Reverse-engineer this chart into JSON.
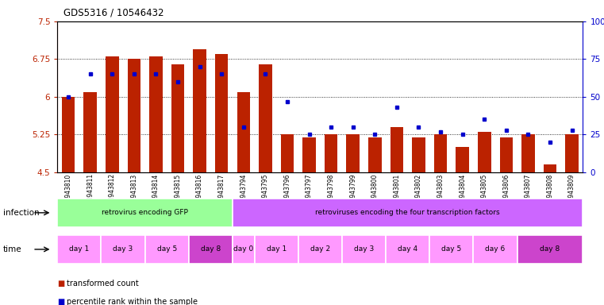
{
  "title": "GDS5316 / 10546432",
  "samples": [
    "GSM943810",
    "GSM943811",
    "GSM943812",
    "GSM943813",
    "GSM943814",
    "GSM943815",
    "GSM943816",
    "GSM943817",
    "GSM943794",
    "GSM943795",
    "GSM943796",
    "GSM943797",
    "GSM943798",
    "GSM943799",
    "GSM943800",
    "GSM943801",
    "GSM943802",
    "GSM943803",
    "GSM943804",
    "GSM943805",
    "GSM943806",
    "GSM943807",
    "GSM943808",
    "GSM943809"
  ],
  "bar_values": [
    6.0,
    6.1,
    6.8,
    6.75,
    6.8,
    6.65,
    6.95,
    6.85,
    6.1,
    6.65,
    5.25,
    5.2,
    5.25,
    5.25,
    5.2,
    5.4,
    5.2,
    5.25,
    5.0,
    5.3,
    5.2,
    5.25,
    4.65,
    5.25
  ],
  "blue_values": [
    50,
    65,
    65,
    65,
    65,
    60,
    70,
    65,
    30,
    65,
    47,
    25,
    30,
    30,
    25,
    43,
    30,
    27,
    25,
    35,
    28,
    25,
    20,
    28
  ],
  "ylim_left": [
    4.5,
    7.5
  ],
  "ylim_right": [
    0,
    100
  ],
  "yticks_left": [
    4.5,
    5.25,
    6.0,
    6.75,
    7.5
  ],
  "yticks_right": [
    0,
    25,
    50,
    75,
    100
  ],
  "ytick_labels_left": [
    "4.5",
    "5.25",
    "6",
    "6.75",
    "7.5"
  ],
  "ytick_labels_right": [
    "0",
    "25",
    "50",
    "75",
    "100%"
  ],
  "grid_values": [
    5.25,
    6.0,
    6.75
  ],
  "bar_color": "#bb2200",
  "blue_color": "#0000cc",
  "bar_bottom": 4.5,
  "infection_groups": [
    {
      "label": "retrovirus encoding GFP",
      "start": 0,
      "end": 7,
      "color": "#99ff99"
    },
    {
      "label": "retroviruses encoding the four transcription factors",
      "start": 8,
      "end": 23,
      "color": "#cc66ff"
    }
  ],
  "time_groups": [
    {
      "label": "day 1",
      "start": 0,
      "end": 1,
      "color": "#ff99ff"
    },
    {
      "label": "day 3",
      "start": 2,
      "end": 3,
      "color": "#ff99ff"
    },
    {
      "label": "day 5",
      "start": 4,
      "end": 5,
      "color": "#ff99ff"
    },
    {
      "label": "day 8",
      "start": 6,
      "end": 7,
      "color": "#cc44cc"
    },
    {
      "label": "day 0",
      "start": 8,
      "end": 8,
      "color": "#ff99ff"
    },
    {
      "label": "day 1",
      "start": 9,
      "end": 10,
      "color": "#ff99ff"
    },
    {
      "label": "day 2",
      "start": 11,
      "end": 12,
      "color": "#ff99ff"
    },
    {
      "label": "day 3",
      "start": 13,
      "end": 14,
      "color": "#ff99ff"
    },
    {
      "label": "day 4",
      "start": 15,
      "end": 16,
      "color": "#ff99ff"
    },
    {
      "label": "day 5",
      "start": 17,
      "end": 18,
      "color": "#ff99ff"
    },
    {
      "label": "day 6",
      "start": 19,
      "end": 20,
      "color": "#ff99ff"
    },
    {
      "label": "day 8",
      "start": 21,
      "end": 23,
      "color": "#cc44cc"
    }
  ],
  "legend_items": [
    {
      "label": "transformed count",
      "color": "#bb2200"
    },
    {
      "label": "percentile rank within the sample",
      "color": "#0000cc"
    }
  ],
  "infection_label": "infection",
  "time_label": "time"
}
